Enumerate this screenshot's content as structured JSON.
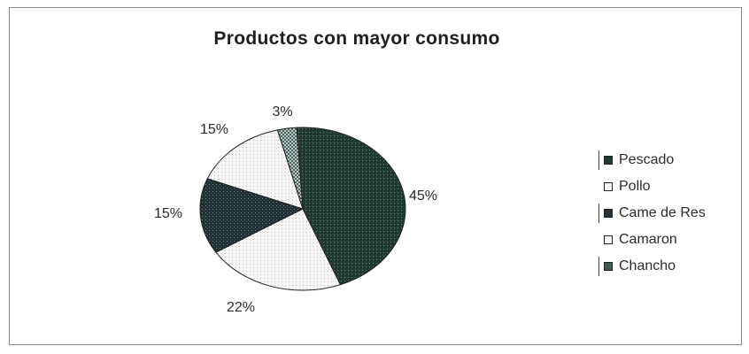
{
  "chart_data": {
    "type": "pie",
    "title": "Productos con mayor consumo",
    "slices": [
      {
        "name": "Pescado",
        "value": 45,
        "label": "45%",
        "color": "#1f3a33",
        "pattern": "dark-dotted"
      },
      {
        "name": "Pollo",
        "value": 22,
        "label": "22%",
        "color": "#f4f4f4",
        "pattern": "white-dotted"
      },
      {
        "name": "Carne de Res",
        "value": 15,
        "label": "15%",
        "color": "#22343a",
        "pattern": "dark-grid"
      },
      {
        "name": "Camaron",
        "value": 15,
        "label": "15%",
        "color": "#f2f2f2",
        "pattern": "white-dotted"
      },
      {
        "name": "Chancho",
        "value": 3,
        "label": "3%",
        "color": "#3e5a55",
        "pattern": "crosshatch"
      }
    ],
    "legend_placement": "right",
    "legend_labels": [
      "Pescado",
      "Pollo",
      "Came de Res",
      "Camaron",
      "Chancho"
    ]
  }
}
